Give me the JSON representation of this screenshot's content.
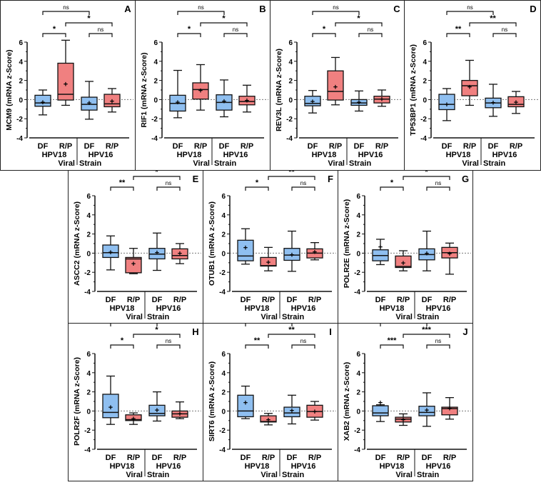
{
  "common": {
    "groups": [
      "DF",
      "R/P",
      "DF",
      "R/P"
    ],
    "strains": [
      "HPV18",
      "HPV16"
    ],
    "xlabel_parts": [
      "Viral",
      "Strain"
    ],
    "ylim": [
      -4,
      6
    ],
    "yticks": [
      -4,
      -2,
      0,
      2,
      4,
      6
    ],
    "colors": {
      "DF": "#8fbff0",
      "R/P": "#f08080",
      "line": "#111111"
    }
  },
  "chart_data": [
    {
      "type": "box",
      "panel": "A",
      "ylabel": "MCM9 (mRNA z-Score)",
      "boxes": [
        [
          -1.6,
          -0.7,
          -0.35,
          0.45,
          1.0,
          -0.25
        ],
        [
          -0.6,
          -0.05,
          0.55,
          3.8,
          6.2,
          1.65
        ],
        [
          -2.05,
          -1.1,
          -0.5,
          0.25,
          1.9,
          -0.35
        ],
        [
          -1.3,
          -0.75,
          -0.45,
          0.55,
          1.15,
          -0.15
        ]
      ],
      "sig": [
        "ns",
        "*",
        "*",
        "ns"
      ]
    },
    {
      "type": "box",
      "panel": "B",
      "ylabel": "RIF1 (mRNA z-Score)",
      "boxes": [
        [
          -1.9,
          -1.2,
          -0.4,
          0.45,
          3.05,
          -0.25
        ],
        [
          -1.1,
          0.05,
          1.05,
          1.75,
          3.65,
          0.95
        ],
        [
          -1.8,
          -1.1,
          -0.3,
          0.5,
          2.05,
          -0.15
        ],
        [
          -1.3,
          -0.55,
          -0.2,
          0.35,
          1.5,
          -0.1
        ]
      ],
      "sig": [
        "ns",
        "*",
        "*",
        "ns"
      ]
    },
    {
      "type": "box",
      "panel": "C",
      "ylabel": "REV3L (mRNA z-Score)",
      "boxes": [
        [
          -1.4,
          -0.65,
          -0.4,
          0.35,
          0.95,
          -0.2
        ],
        [
          -0.55,
          -0.05,
          0.85,
          3.0,
          4.4,
          1.35
        ],
        [
          -1.2,
          -0.6,
          -0.35,
          0.0,
          0.9,
          -0.25
        ],
        [
          -0.7,
          -0.35,
          0.05,
          0.35,
          1.0,
          0.05
        ]
      ],
      "sig": [
        "ns",
        "*",
        "*",
        "ns"
      ]
    },
    {
      "type": "box",
      "panel": "D",
      "ylabel": "TP53BP1 (mRNA z-Score)",
      "boxes": [
        [
          -2.2,
          -1.05,
          -0.5,
          0.55,
          1.15,
          -0.5
        ],
        [
          -0.6,
          0.4,
          1.45,
          2.0,
          4.1,
          1.35
        ],
        [
          -1.75,
          -0.85,
          -0.35,
          0.15,
          1.6,
          -0.3
        ],
        [
          -1.45,
          -0.75,
          -0.5,
          0.3,
          0.85,
          -0.25
        ]
      ],
      "sig": [
        "ns",
        "**",
        "**",
        "ns"
      ]
    },
    {
      "type": "box",
      "panel": "E",
      "ylabel": "ASCC2 (mRNA z-Score)",
      "boxes": [
        [
          -1.75,
          -0.45,
          0.05,
          0.85,
          1.8,
          0.1
        ],
        [
          -2.15,
          -2.05,
          -0.6,
          -0.45,
          0.5,
          -1.1
        ],
        [
          -1.8,
          -0.6,
          -0.1,
          0.5,
          2.1,
          0.05
        ],
        [
          -1.1,
          -0.6,
          -0.25,
          0.45,
          1.0,
          0.0
        ]
      ],
      "sig": [
        "ns",
        "*",
        "**",
        "ns"
      ]
    },
    {
      "type": "box",
      "panel": "F",
      "ylabel": "OTUB1 (mRNA z-Score)",
      "boxes": [
        [
          -1.15,
          -0.8,
          -0.3,
          1.35,
          2.55,
          0.6
        ],
        [
          -1.85,
          -1.35,
          -1.3,
          -0.45,
          0.6,
          -0.95
        ],
        [
          -1.9,
          -0.75,
          -0.2,
          0.5,
          2.3,
          -0.15
        ],
        [
          -0.7,
          -0.5,
          0.0,
          0.45,
          1.1,
          0.15
        ]
      ],
      "sig": [
        "ns",
        "**",
        "*",
        "ns"
      ]
    },
    {
      "type": "box",
      "panel": "G",
      "ylabel": "POLR2E (mRNA z-Score)",
      "boxes": [
        [
          -1.2,
          -0.8,
          -0.25,
          0.35,
          1.45,
          0.65
        ],
        [
          -1.85,
          -1.5,
          -1.4,
          -0.3,
          0.25,
          -1.0
        ],
        [
          -1.85,
          -0.7,
          -0.15,
          0.45,
          2.3,
          0.0
        ],
        [
          -2.2,
          -0.5,
          0.05,
          0.6,
          1.05,
          -0.05
        ]
      ],
      "sig": [
        "ns",
        "*",
        "*",
        "ns"
      ]
    },
    {
      "type": "box",
      "panel": "H",
      "ylabel": "POLR2F (mRNA z-Score)",
      "boxes": [
        [
          -1.4,
          -0.7,
          -0.15,
          1.75,
          3.65,
          0.4
        ],
        [
          -1.4,
          -1.0,
          -0.9,
          -0.4,
          -0.2,
          -0.8
        ],
        [
          -1.05,
          -0.5,
          -0.25,
          0.6,
          2.0,
          0.1
        ],
        [
          -0.8,
          -0.65,
          -0.3,
          0.0,
          0.95,
          -0.25
        ]
      ],
      "sig": [
        "ns",
        "*",
        "*",
        "ns"
      ]
    },
    {
      "type": "box",
      "panel": "I",
      "ylabel": "SIRT6 (mRNA z-Score)",
      "boxes": [
        [
          -0.8,
          -0.6,
          0.0,
          1.65,
          2.6,
          0.9
        ],
        [
          -1.45,
          -1.15,
          -1.1,
          -0.5,
          -0.25,
          -0.9
        ],
        [
          -1.35,
          -0.6,
          -0.2,
          0.4,
          1.65,
          0.05
        ],
        [
          -0.95,
          -0.65,
          -0.05,
          0.6,
          1.0,
          -0.05
        ]
      ],
      "sig": [
        "ns",
        "**",
        "**",
        "ns"
      ]
    },
    {
      "type": "box",
      "panel": "J",
      "ylabel": "XAB2 (mRNA z-Score)",
      "boxes": [
        [
          -1.1,
          -0.5,
          -0.2,
          0.55,
          0.65,
          0.9
        ],
        [
          -1.5,
          -1.15,
          -0.85,
          -0.65,
          -0.3,
          -0.9
        ],
        [
          -1.6,
          -0.5,
          -0.15,
          0.5,
          1.9,
          0.1
        ],
        [
          -0.85,
          -0.4,
          0.25,
          0.4,
          1.4,
          0.3
        ]
      ],
      "sig": [
        "ns",
        "***",
        "***",
        "ns"
      ]
    }
  ]
}
